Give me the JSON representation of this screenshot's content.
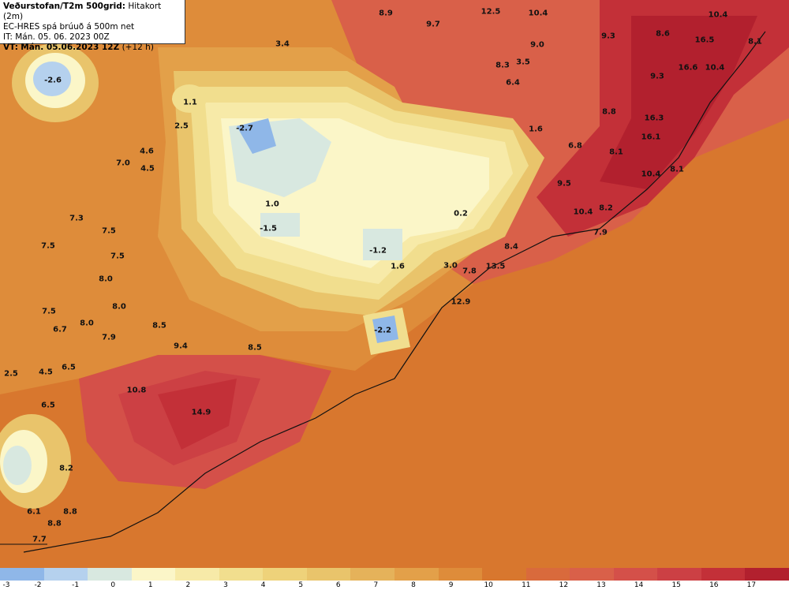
{
  "header": {
    "title": "Veðurstofan/T2m 500grid:",
    "subtitle": "Hitakort (2m)",
    "model": "EC-HRES spá brúuð á 500m net",
    "init_time": "IT: Mán. 05. 06. 2023 00Z",
    "valid_prefix": "VT:",
    "valid_time": "Mán. 05.06.2023 12Z",
    "lead": "(+12 h)"
  },
  "labels": [
    {
      "t": "-2.6"
    },
    {
      "t": "8.9"
    },
    {
      "t": "12.5"
    },
    {
      "t": "10.4"
    },
    {
      "t": "10.4"
    },
    {
      "t": "9.7"
    },
    {
      "t": "3.4"
    },
    {
      "t": "8.6"
    },
    {
      "t": "16.5"
    },
    {
      "t": "8.1"
    },
    {
      "t": "9.0"
    },
    {
      "t": "9.3"
    },
    {
      "t": "8.3"
    },
    {
      "t": "3.5"
    },
    {
      "t": "16.6"
    },
    {
      "t": "10.4"
    },
    {
      "t": "6.4"
    },
    {
      "t": "9.3"
    },
    {
      "t": "1.1"
    },
    {
      "t": "2.5"
    },
    {
      "t": "-2.7"
    },
    {
      "t": "8.8"
    },
    {
      "t": "16.3"
    },
    {
      "t": "1.6"
    },
    {
      "t": "4.6"
    },
    {
      "t": "4.5"
    },
    {
      "t": "7.0"
    },
    {
      "t": "6.8"
    },
    {
      "t": "16.1"
    },
    {
      "t": "8.1"
    },
    {
      "t": "9.5"
    },
    {
      "t": "10.4"
    },
    {
      "t": "8.1"
    },
    {
      "t": "1.0"
    },
    {
      "t": "0.2"
    },
    {
      "t": "10.4"
    },
    {
      "t": "8.2"
    },
    {
      "t": "7.3"
    },
    {
      "t": "-1.5"
    },
    {
      "t": "7.5"
    },
    {
      "t": "7.9"
    },
    {
      "t": "7.5"
    },
    {
      "t": "-1.2"
    },
    {
      "t": "8.4"
    },
    {
      "t": "7.5"
    },
    {
      "t": "3.0"
    },
    {
      "t": "7.8"
    },
    {
      "t": "13.5"
    },
    {
      "t": "1.6"
    },
    {
      "t": "8.0"
    },
    {
      "t": "12.9"
    },
    {
      "t": "7.5"
    },
    {
      "t": "8.0"
    },
    {
      "t": "8.0"
    },
    {
      "t": "8.5"
    },
    {
      "t": "6.7"
    },
    {
      "t": "7.9"
    },
    {
      "t": "-2.2"
    },
    {
      "t": "9.4"
    },
    {
      "t": "8.5"
    },
    {
      "t": "4.5"
    },
    {
      "t": "6.5"
    },
    {
      "t": "2.5"
    },
    {
      "t": "10.8"
    },
    {
      "t": "6.5"
    },
    {
      "t": "14.9"
    },
    {
      "t": "8.2"
    },
    {
      "t": "6.1"
    },
    {
      "t": "8.8"
    },
    {
      "t": "8.8"
    },
    {
      "t": "7.7"
    }
  ],
  "colorbar": {
    "colors": [
      "#8fb7e8",
      "#b5d1ee",
      "#d8e8e0",
      "#fbf6c8",
      "#f7eaa8",
      "#f1de8e",
      "#eed27a",
      "#e9c46b",
      "#e5b25a",
      "#e3a049",
      "#de8c3a",
      "#d8772e",
      "#d96a3c",
      "#d96049",
      "#d45049",
      "#cc4044",
      "#c33038",
      "#b2202e"
    ],
    "ticks": [
      "-3",
      "-2",
      "-1",
      "0",
      "1",
      "2",
      "3",
      "4",
      "5",
      "6",
      "7",
      "8",
      "9",
      "10",
      "11",
      "12",
      "13",
      "14",
      "15",
      "16",
      "17"
    ]
  }
}
